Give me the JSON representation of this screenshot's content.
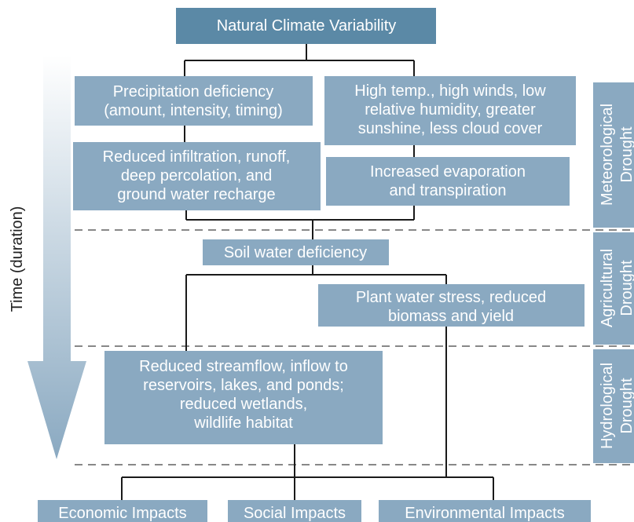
{
  "axis_label": "Time (duration)",
  "nodes": [
    {
      "lines": [
        "Natural Climate Variability"
      ]
    },
    {
      "lines": [
        "Precipitation deficiency",
        "(amount, intensity, timing)"
      ]
    },
    {
      "lines": [
        "High temp., high winds, low",
        "relative humidity, greater",
        "sunshine, less cloud cover"
      ]
    },
    {
      "lines": [
        "Reduced infiltration, runoff,",
        "deep percolation, and",
        "ground water recharge"
      ]
    },
    {
      "lines": [
        "Increased evaporation",
        "and transpiration"
      ]
    },
    {
      "lines": [
        "Soil water deficiency"
      ]
    },
    {
      "lines": [
        "Plant water stress, reduced",
        "biomass and yield"
      ]
    },
    {
      "lines": [
        "Reduced streamflow, inflow to",
        "reservoirs, lakes, and ponds;",
        "reduced wetlands,",
        "wildlife habitat"
      ]
    },
    {
      "lines": [
        "Economic Impacts"
      ]
    },
    {
      "lines": [
        "Social Impacts"
      ]
    },
    {
      "lines": [
        "Environmental Impacts"
      ]
    }
  ],
  "zones": [
    {
      "lines": [
        "Meteorological",
        "Drought"
      ]
    },
    {
      "lines": [
        "Agricultural",
        "Drought"
      ]
    },
    {
      "lines": [
        "Hydrological",
        "Drought"
      ]
    }
  ]
}
